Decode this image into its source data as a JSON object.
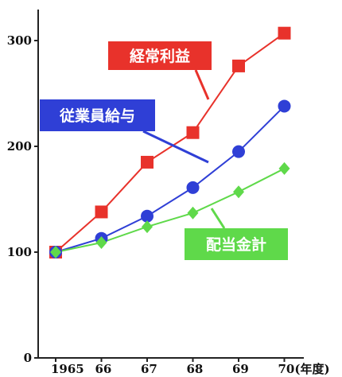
{
  "chart_data": {
    "type": "line",
    "x": [
      1965,
      1966,
      1967,
      1968,
      1969,
      1970
    ],
    "x_tick_labels": [
      "1965",
      "66",
      "67",
      "68",
      "69",
      "70(年度)"
    ],
    "y_ticks": [
      0,
      100,
      200,
      300
    ],
    "ylim": [
      0,
      320
    ],
    "grid": false,
    "series": [
      {
        "name": "経常利益",
        "marker": "square",
        "color": "#e8322b",
        "values": [
          100,
          138,
          185,
          213,
          276,
          307
        ]
      },
      {
        "name": "従業員給与",
        "marker": "circle",
        "color": "#2f3fd6",
        "values": [
          100,
          113,
          134,
          161,
          195,
          238
        ]
      },
      {
        "name": "配当金計",
        "marker": "diamond",
        "color": "#5fd94a",
        "values": [
          100,
          109,
          124,
          137,
          157,
          179
        ]
      }
    ],
    "legend": "callout labels on lines"
  }
}
